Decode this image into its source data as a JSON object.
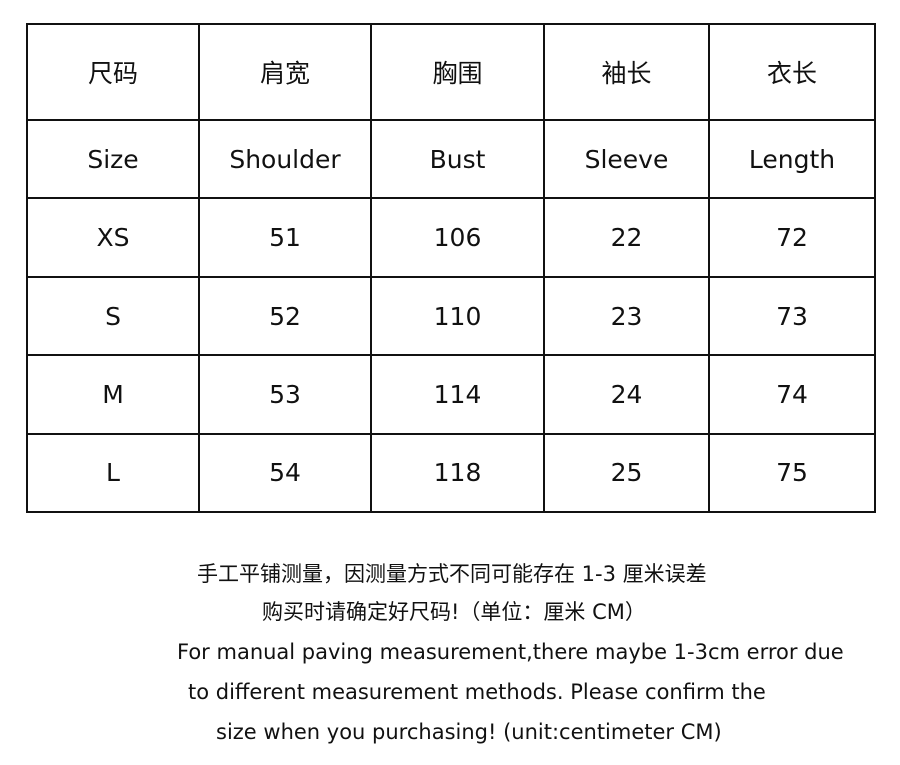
{
  "table": {
    "header_cn": [
      "尺码",
      "肩宽",
      "胸围",
      "袖长",
      "衣长"
    ],
    "header_en": [
      "Size",
      "Shoulder",
      "Bust",
      "Sleeve",
      "Length"
    ],
    "rows": [
      [
        "XS",
        "51",
        "106",
        "22",
        "72"
      ],
      [
        "S",
        "52",
        "110",
        "23",
        "73"
      ],
      [
        "M",
        "53",
        "114",
        "24",
        "74"
      ],
      [
        "L",
        "54",
        "118",
        "25",
        "75"
      ]
    ]
  },
  "notes": [
    "手工平铺测量，因测量方式不同可能存在 1-3 厘米误差",
    "购买时请确定好尺码!（单位：厘米 CM）",
    "For manual paving measurement,there maybe 1-3cm error due",
    "to different measurement methods. Please confirm the",
    "size when you purchasing! (unit:centimeter CM)"
  ]
}
